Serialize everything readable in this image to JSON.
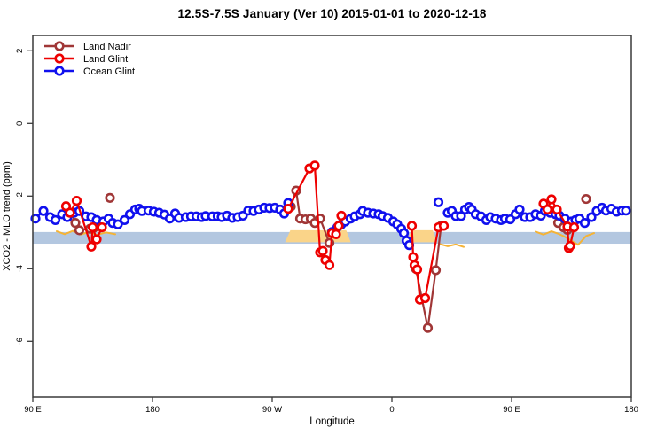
{
  "chart_data": {
    "type": "line",
    "title": "12.5S-7.5S January (Ver 10)   2015-01-01 to 2020-12-18",
    "xlabel": "Longitude",
    "ylabel": "XCO2 - MLO trend (ppm)",
    "grid": false,
    "x_axis": {
      "pos_range": [
        90,
        540
      ],
      "ticks": [
        {
          "pos": 90,
          "label": "90 E"
        },
        {
          "pos": 180,
          "label": "180"
        },
        {
          "pos": 270,
          "label": "90 W"
        },
        {
          "pos": 360,
          "label": "0"
        },
        {
          "pos": 450,
          "label": "90 E"
        },
        {
          "pos": 540,
          "label": "180"
        }
      ]
    },
    "y_axis": {
      "range": [
        -7.5,
        2.4
      ],
      "ticks": [
        {
          "v": 2,
          "label": "2"
        },
        {
          "v": 0,
          "label": "0"
        },
        {
          "v": -2,
          "label": "-2"
        },
        {
          "v": -4,
          "label": "-4"
        },
        {
          "v": -6,
          "label": "-6"
        }
      ]
    },
    "reference_band": {
      "color": "#B3C7E0",
      "pos": [
        90,
        540
      ],
      "value_range": [
        -2.99,
        -3.31
      ]
    },
    "highlight_band": {
      "color": "#FAD489",
      "value_range": [
        -2.94,
        -3.27
      ],
      "segments": [
        [
          281,
          327
        ],
        [
          372,
          392
        ]
      ]
    },
    "scribbles": {
      "color": "#F5B335",
      "polylines": [
        [
          [
            108,
            -2.97
          ],
          [
            114,
            -3.05
          ],
          [
            120,
            -2.96
          ],
          [
            126,
            -3.06
          ],
          [
            132,
            -2.99
          ],
          [
            138,
            -3.07
          ],
          [
            145,
            -3.0
          ],
          [
            152,
            -3.05
          ]
        ],
        [
          [
            396,
            -3.32
          ],
          [
            402,
            -3.38
          ],
          [
            408,
            -3.33
          ],
          [
            414,
            -3.4
          ]
        ],
        [
          [
            468,
            -2.98
          ],
          [
            474,
            -3.06
          ],
          [
            480,
            -2.97
          ],
          [
            486,
            -3.05
          ],
          [
            490,
            -3.12
          ],
          [
            496,
            -3.25
          ],
          [
            500,
            -3.34
          ],
          [
            506,
            -3.1
          ],
          [
            512,
            -3.02
          ]
        ]
      ]
    },
    "legend": {
      "position": "top-left",
      "items": [
        {
          "label": "Land Nadir",
          "color": "#A03636"
        },
        {
          "label": "Land Glint",
          "color": "#EE0000"
        },
        {
          "label": "Ocean Glint",
          "color": "#1010EE"
        }
      ]
    },
    "series": [
      {
        "name": "Land Nadir",
        "color": "#A03636",
        "segments": [
          [
            [
              119,
              -2.46
            ],
            [
              122,
              -2.74
            ],
            [
              125,
              -2.94
            ],
            [
              133,
              -2.9
            ],
            [
              136,
              -2.87
            ]
          ],
          [
            [
              148,
              -2.05
            ]
          ],
          [
            [
              284,
              -2.29
            ],
            [
              288,
              -1.85
            ],
            [
              291,
              -2.62
            ],
            [
              295,
              -2.64
            ],
            [
              299,
              -2.62
            ],
            [
              302,
              -2.74
            ],
            [
              306,
              -2.62
            ],
            [
              313,
              -3.29
            ]
          ],
          [
            [
              378,
              -4.0
            ],
            [
              387,
              -5.63
            ],
            [
              393,
              -4.04
            ],
            [
              397,
              -2.82
            ]
          ],
          [
            [
              485,
              -2.74
            ],
            [
              489,
              -2.86
            ],
            [
              492,
              -2.93
            ]
          ],
          [
            [
              506,
              -2.08
            ]
          ]
        ]
      },
      {
        "name": "Land Glint",
        "color": "#EE0000",
        "segments": [
          [
            [
              115,
              -2.28
            ],
            [
              118,
              -2.46
            ],
            [
              123,
              -2.13
            ],
            [
              134,
              -3.39
            ],
            [
              135,
              -2.86
            ],
            [
              138,
              -3.19
            ],
            [
              142,
              -2.86
            ]
          ],
          [
            [
              282,
              -2.35
            ],
            [
              298,
              -1.24
            ],
            [
              302,
              -1.16
            ],
            [
              306,
              -3.55
            ],
            [
              308,
              -3.51
            ],
            [
              310,
              -3.76
            ],
            [
              313,
              -3.9
            ],
            [
              315,
              -3.02
            ],
            [
              318,
              -3.05
            ],
            [
              320,
              -2.82
            ],
            [
              322,
              -2.54
            ]
          ],
          [
            [
              375,
              -2.82
            ],
            [
              376,
              -3.68
            ],
            [
              377,
              -3.9
            ],
            [
              379,
              -4.02
            ],
            [
              381,
              -4.85
            ],
            [
              385,
              -4.81
            ],
            [
              395,
              -2.86
            ],
            [
              399,
              -2.82
            ]
          ],
          [
            [
              474,
              -2.21
            ],
            [
              477,
              -2.37
            ],
            [
              480,
              -2.09
            ],
            [
              484,
              -2.37
            ],
            [
              492,
              -2.84
            ],
            [
              493,
              -3.43
            ],
            [
              494,
              -3.37
            ],
            [
              497,
              -2.86
            ]
          ]
        ]
      },
      {
        "name": "Ocean Glint",
        "color": "#1010EE",
        "segments": [
          [
            [
              92,
              -2.62
            ],
            [
              98,
              -2.41
            ],
            [
              103,
              -2.58
            ],
            [
              107,
              -2.66
            ],
            [
              112,
              -2.5
            ],
            [
              116,
              -2.58
            ],
            [
              121,
              -2.46
            ],
            [
              125,
              -2.41
            ],
            [
              130,
              -2.56
            ],
            [
              134,
              -2.58
            ],
            [
              138,
              -2.66
            ],
            [
              143,
              -2.7
            ],
            [
              147,
              -2.62
            ],
            [
              150,
              -2.74
            ],
            [
              154,
              -2.78
            ],
            [
              159,
              -2.66
            ],
            [
              163,
              -2.5
            ],
            [
              167,
              -2.37
            ],
            [
              170,
              -2.35
            ],
            [
              172,
              -2.41
            ],
            [
              177,
              -2.4
            ],
            [
              181,
              -2.43
            ],
            [
              185,
              -2.46
            ],
            [
              189,
              -2.51
            ],
            [
              193,
              -2.62
            ],
            [
              197,
              -2.48
            ],
            [
              200,
              -2.6
            ],
            [
              205,
              -2.58
            ],
            [
              209,
              -2.56
            ],
            [
              213,
              -2.56
            ],
            [
              217,
              -2.58
            ],
            [
              220,
              -2.55
            ],
            [
              225,
              -2.56
            ],
            [
              229,
              -2.56
            ],
            [
              232,
              -2.58
            ],
            [
              236,
              -2.54
            ],
            [
              240,
              -2.6
            ],
            [
              244,
              -2.58
            ],
            [
              248,
              -2.54
            ],
            [
              252,
              -2.4
            ],
            [
              256,
              -2.41
            ],
            [
              260,
              -2.37
            ],
            [
              264,
              -2.32
            ],
            [
              268,
              -2.33
            ],
            [
              272,
              -2.32
            ],
            [
              276,
              -2.37
            ],
            [
              279,
              -2.48
            ],
            [
              282,
              -2.19
            ]
          ],
          [
            [
              315,
              -2.99
            ],
            [
              319,
              -2.86
            ],
            [
              322,
              -2.78
            ],
            [
              325,
              -2.7
            ],
            [
              329,
              -2.62
            ],
            [
              332,
              -2.56
            ],
            [
              336,
              -2.5
            ],
            [
              338,
              -2.41
            ],
            [
              342,
              -2.46
            ],
            [
              346,
              -2.48
            ],
            [
              350,
              -2.5
            ],
            [
              353,
              -2.55
            ],
            [
              357,
              -2.6
            ],
            [
              361,
              -2.7
            ],
            [
              364,
              -2.78
            ],
            [
              367,
              -2.9
            ],
            [
              369,
              -3.02
            ],
            [
              371,
              -3.23
            ],
            [
              373,
              -3.35
            ]
          ],
          [
            [
              395,
              -2.17
            ]
          ],
          [
            [
              402,
              -2.46
            ],
            [
              405,
              -2.41
            ],
            [
              408,
              -2.55
            ],
            [
              412,
              -2.55
            ],
            [
              415,
              -2.37
            ],
            [
              418,
              -2.3
            ],
            [
              420,
              -2.37
            ],
            [
              423,
              -2.5
            ],
            [
              427,
              -2.56
            ],
            [
              431,
              -2.66
            ],
            [
              434,
              -2.58
            ],
            [
              438,
              -2.62
            ],
            [
              442,
              -2.66
            ],
            [
              445,
              -2.62
            ],
            [
              449,
              -2.64
            ],
            [
              453,
              -2.5
            ],
            [
              456,
              -2.37
            ],
            [
              460,
              -2.58
            ],
            [
              464,
              -2.58
            ],
            [
              468,
              -2.5
            ],
            [
              472,
              -2.54
            ],
            [
              475,
              -2.41
            ],
            [
              479,
              -2.46
            ],
            [
              483,
              -2.5
            ],
            [
              486,
              -2.54
            ],
            [
              490,
              -2.62
            ],
            [
              495,
              -2.7
            ],
            [
              498,
              -2.66
            ],
            [
              501,
              -2.62
            ],
            [
              505,
              -2.74
            ],
            [
              510,
              -2.58
            ],
            [
              514,
              -2.41
            ],
            [
              518,
              -2.32
            ],
            [
              521,
              -2.4
            ],
            [
              525,
              -2.35
            ],
            [
              529,
              -2.43
            ],
            [
              533,
              -2.4
            ],
            [
              536,
              -2.4
            ]
          ]
        ]
      }
    ]
  }
}
